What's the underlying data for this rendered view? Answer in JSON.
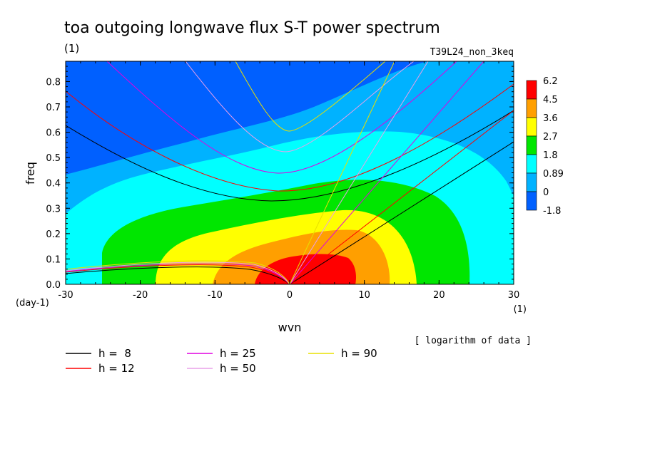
{
  "chart_data": {
    "type": "heatmap",
    "title": "toa outgoing longwave flux S-T power spectrum",
    "subtitle": "(1)",
    "run_name": "T39L24_non_3keq",
    "xlabel": "wvn",
    "ylabel": "freq",
    "x_unit": "(1)",
    "y_unit": "(day-1)",
    "xlim": [
      -30,
      30
    ],
    "ylim": [
      0,
      0.88
    ],
    "xticks": [
      "-30",
      "-20",
      "-10",
      "0",
      "10",
      "20",
      "30"
    ],
    "yticks": [
      "0.0",
      "0.1",
      "0.2",
      "0.3",
      "0.4",
      "0.5",
      "0.6",
      "0.7",
      "0.8"
    ],
    "colorbar": {
      "labels": [
        "6.2",
        "4.5",
        "3.6",
        "2.7",
        "1.8",
        "0.89",
        "0",
        "-1.8"
      ],
      "colors": [
        "#ff0000",
        "#ff9f00",
        "#ffff00",
        "#00e600",
        "#00ffff",
        "#00b2ff",
        "#0060ff"
      ]
    },
    "note": "[ logarithm of data ]",
    "dispersion_curves": [
      {
        "label": "h =  8",
        "h": 8,
        "color": "#000000"
      },
      {
        "label": "h = 12",
        "h": 12,
        "color": "#ff0000"
      },
      {
        "label": "h = 25",
        "h": 25,
        "color": "#e000e0"
      },
      {
        "label": "h = 50",
        "h": 50,
        "color": "#e8a0e8"
      },
      {
        "label": "h = 90",
        "h": 90,
        "color": "#e8e000"
      }
    ]
  }
}
